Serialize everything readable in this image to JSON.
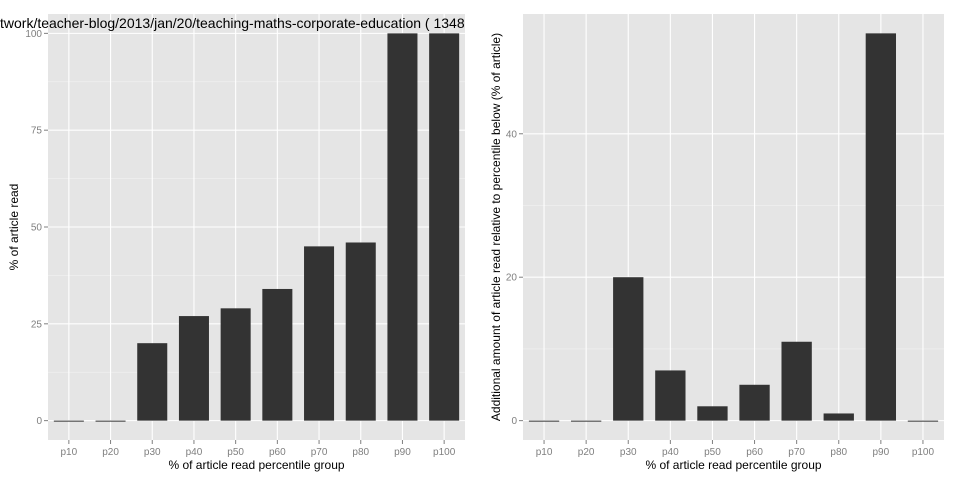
{
  "chart_data": [
    {
      "type": "bar",
      "title": "twork/teacher-blog/2013/jan/20/teaching-maths-corporate-education ( 1348",
      "xlabel": "% of article read percentile group",
      "ylabel": "% of article read",
      "categories": [
        "p10",
        "p20",
        "p30",
        "p40",
        "p50",
        "p60",
        "p70",
        "p80",
        "p90",
        "p100"
      ],
      "values": [
        0,
        0,
        20,
        27,
        29,
        34,
        45,
        46,
        100,
        100
      ],
      "ylim": [
        -5,
        105
      ],
      "yticks": [
        0,
        25,
        50,
        75,
        100
      ],
      "ytick_labels": [
        "0",
        "25",
        "50",
        "75",
        "100"
      ],
      "grid": true,
      "colors": {
        "bar": "#333333",
        "panel": "#e5e5e5",
        "grid": "#ffffff",
        "grid_minor": "#f2f2f2"
      }
    },
    {
      "type": "bar",
      "title": "",
      "xlabel": "% of article read percentile group",
      "ylabel": "Additional amount of article read relative to percentile below (% of article)",
      "categories": [
        "p10",
        "p20",
        "p30",
        "p40",
        "p50",
        "p60",
        "p70",
        "p80",
        "p90",
        "p100"
      ],
      "values": [
        0,
        0,
        20,
        7,
        2,
        5,
        11,
        1,
        54,
        0
      ],
      "ylim": [
        -2.7,
        56.7
      ],
      "yticks": [
        0,
        20,
        40
      ],
      "ytick_labels": [
        "0",
        "20",
        "40"
      ],
      "grid": true,
      "colors": {
        "bar": "#333333",
        "panel": "#e5e5e5",
        "grid": "#ffffff",
        "grid_minor": "#f2f2f2"
      }
    }
  ]
}
